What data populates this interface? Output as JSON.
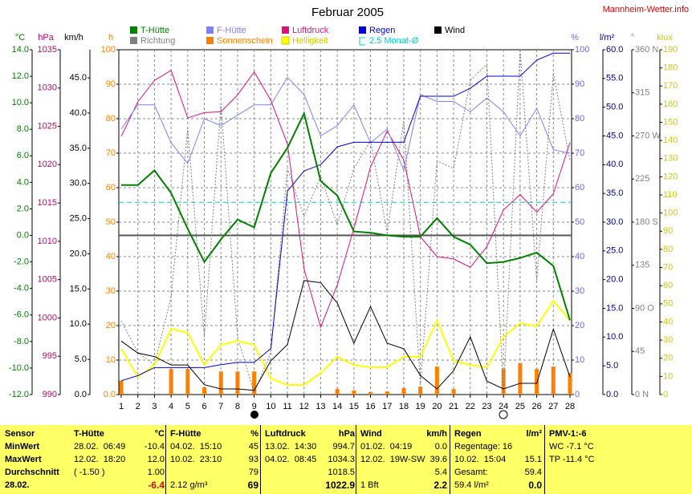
{
  "title": "Februar 2005",
  "site": "Mannheim-Wetter.info",
  "chart_data": {
    "type": "line",
    "x": [
      1,
      2,
      3,
      4,
      5,
      6,
      7,
      8,
      9,
      10,
      11,
      12,
      13,
      14,
      15,
      16,
      17,
      18,
      19,
      20,
      21,
      22,
      23,
      24,
      25,
      26,
      27,
      28
    ],
    "axes": [
      {
        "label": "°C",
        "color": "#008000",
        "lim": [
          -12,
          14
        ],
        "ticks": [
          {
            "value": -12,
            "label": "-12.0"
          },
          {
            "value": -10,
            "label": "-10.0"
          },
          {
            "value": -8,
            "label": "-8.0"
          },
          {
            "value": -6,
            "label": "-6.0"
          },
          {
            "value": -4,
            "label": "-4.0"
          },
          {
            "value": -2,
            "label": "-2.0"
          },
          {
            "value": 0,
            "label": "0.0"
          },
          {
            "value": 2,
            "label": "2.0"
          },
          {
            "value": 4,
            "label": "4.0"
          },
          {
            "value": 6,
            "label": "6.0"
          },
          {
            "value": 8,
            "label": "8.0"
          },
          {
            "value": 10,
            "label": "10.0"
          },
          {
            "value": 12,
            "label": "12.0"
          },
          {
            "value": 14,
            "label": "14.0"
          }
        ]
      },
      {
        "label": "hPa",
        "color": "#cc0066",
        "lim": [
          990,
          1035
        ],
        "ticks": [
          990,
          995,
          1000,
          1005,
          1010,
          1015,
          1020,
          1025,
          1030,
          1035
        ]
      },
      {
        "label": "km/h",
        "color": "#000000",
        "lim": [
          0,
          49
        ],
        "ticks": [
          {
            "value": 0,
            "label": "0.0"
          },
          {
            "value": 5,
            "label": "5.0"
          },
          {
            "value": 10,
            "label": "10.0"
          },
          {
            "value": 15,
            "label": "15.0"
          },
          {
            "value": 20,
            "label": "20.0"
          },
          {
            "value": 25,
            "label": "25.0"
          },
          {
            "value": 30,
            "label": "30.0"
          },
          {
            "value": 35,
            "label": "35.0"
          },
          {
            "value": 40,
            "label": "40.0"
          },
          {
            "value": 45,
            "label": "45.0"
          }
        ]
      },
      {
        "label": "h",
        "color": "#ff8000",
        "lim": [
          0,
          100
        ],
        "ticks": [
          {
            "value": 0,
            "label": "0.0"
          },
          10,
          20,
          30,
          40,
          50,
          60,
          70,
          80,
          90,
          100
        ],
        "grid": true
      },
      {
        "label": "%",
        "color": "#6666ff",
        "lim": [
          0,
          100
        ],
        "ticks": [
          0,
          10,
          20,
          30,
          40,
          50,
          60,
          70,
          80,
          90,
          100
        ]
      },
      {
        "label": "l/m²",
        "color": "#000099",
        "lim": [
          0,
          60
        ],
        "ticks": [
          {
            "value": 0,
            "label": "0.0"
          },
          {
            "value": 5,
            "label": "5.0"
          },
          {
            "value": 10,
            "label": "10.0"
          },
          {
            "value": 15,
            "label": "15.0"
          },
          {
            "value": 20,
            "label": "20.0"
          },
          {
            "value": 25,
            "label": "25.0"
          },
          {
            "value": 30,
            "label": "30.0"
          },
          {
            "value": 35,
            "label": "35.0"
          },
          {
            "value": 40,
            "label": "40.0"
          },
          {
            "value": 45,
            "label": "45.0"
          },
          {
            "value": 50,
            "label": "50.0"
          },
          {
            "value": 55,
            "label": "55.0"
          },
          {
            "value": 60,
            "label": "60.0"
          }
        ]
      },
      {
        "label": "°",
        "color": "#808080",
        "lim": [
          0,
          360
        ],
        "ticks": [
          {
            "value": 0,
            "label": "0 N"
          },
          45,
          {
            "value": 90,
            "label": "90 O"
          },
          135,
          {
            "value": 180,
            "label": "180 S"
          },
          225,
          {
            "value": 270,
            "label": "270 W"
          },
          315,
          {
            "value": 360,
            "label": "360 N"
          }
        ]
      },
      {
        "label": "klux",
        "color": "#cccc00",
        "lim": [
          0,
          190
        ],
        "ticks": [
          0,
          10,
          20,
          30,
          40,
          50,
          60,
          70,
          80,
          90,
          100,
          110,
          120,
          130,
          140,
          150,
          160,
          170,
          180,
          190
        ]
      }
    ],
    "series": [
      {
        "name": "T-Hütte",
        "axis": 0,
        "color": "#008000",
        "width": 2,
        "values": [
          3.8,
          3.8,
          4.9,
          3.2,
          0.5,
          -2.0,
          -0.3,
          1.2,
          0.6,
          4.7,
          6.6,
          9.2,
          4.1,
          3.0,
          0.3,
          0.2,
          0.0,
          -0.1,
          -0.1,
          1.3,
          -0.1,
          -0.7,
          -2.1,
          -2.0,
          -1.7,
          -1.3,
          -2.3,
          -6.4
        ]
      },
      {
        "name": "F-Hütte",
        "axis": 4,
        "color": "#8080ff",
        "width": 1,
        "values": [
          77,
          84,
          84,
          73,
          67,
          80,
          78,
          81,
          84,
          84,
          92,
          87,
          75,
          78,
          84,
          73,
          77,
          65,
          87,
          85,
          85,
          82,
          86,
          82,
          75,
          83,
          71,
          70
        ]
      },
      {
        "name": "Luftdruck",
        "axis": 1,
        "color": "#e0107a",
        "width": 1,
        "values": [
          1023.7,
          1028.2,
          1031.0,
          1032.3,
          1026.1,
          1026.8,
          1026.9,
          1029.1,
          1032.1,
          1028.4,
          1022.7,
          1006.4,
          998.8,
          1004.3,
          1011.7,
          1019.7,
          1024.4,
          1020.6,
          1010.6,
          1008.0,
          1007.7,
          1006.6,
          1009.3,
          1014.1,
          1016.1,
          1013.8,
          1016.2,
          1022.9
        ]
      },
      {
        "name": "Regen",
        "axis": 5,
        "color": "#0000dd",
        "width": 1,
        "values": [
          2.4,
          3.3,
          4.7,
          4.7,
          4.7,
          4.7,
          5.2,
          5.6,
          5.6,
          8.0,
          35.4,
          38.9,
          40.0,
          43.1,
          43.9,
          43.9,
          43.9,
          43.9,
          51.9,
          51.9,
          51.9,
          53.3,
          55.4,
          55.4,
          55.4,
          58.2,
          59.4,
          59.4
        ]
      },
      {
        "name": "Wind",
        "axis": 2,
        "color": "#000000",
        "width": 1,
        "values": [
          7.6,
          5.9,
          5.4,
          4.2,
          4.2,
          1.4,
          0.8,
          0.8,
          0.6,
          4.8,
          7.1,
          16.2,
          15.9,
          13.0,
          7.3,
          12.5,
          7.3,
          6.5,
          2.7,
          0.8,
          3.4,
          8.2,
          1.9,
          0.8,
          1.6,
          1.6,
          9.3,
          2.5
        ]
      },
      {
        "name": "Richtung",
        "axis": 6,
        "color": "#808080",
        "width": 1,
        "dash": true,
        "values": [
          77,
          44,
          31,
          102,
          278,
          60,
          303,
          60,
          2,
          44,
          236,
          186,
          228,
          177,
          236,
          265,
          169,
          286,
          10,
          244,
          236,
          328,
          345,
          2,
          360,
          119,
          336,
          244
        ]
      },
      {
        "name": "Sonnenschein",
        "axis": 3,
        "color": "#ff8000",
        "kind": "bar",
        "values": [
          4.0,
          0,
          0,
          7.4,
          7.4,
          2.1,
          6.7,
          6.7,
          6.7,
          0,
          0,
          0,
          0,
          1.6,
          1.2,
          0.7,
          0.9,
          1.9,
          2.3,
          8.1,
          1.6,
          0,
          0,
          7.4,
          9.1,
          7.4,
          8.1,
          6.3
        ]
      },
      {
        "name": "Helligkeit",
        "axis": 7,
        "color": "#ffff00",
        "width": 2,
        "values": [
          25.2,
          9.7,
          16.3,
          36.2,
          34.0,
          16.3,
          27.4,
          29.6,
          27.4,
          8.8,
          5.3,
          5.3,
          11.9,
          20.8,
          16.3,
          15.0,
          15.0,
          20.8,
          20.8,
          40.7,
          18.6,
          16.3,
          15.0,
          31.8,
          39.3,
          37.6,
          51.7,
          40.7
        ]
      },
      {
        "name": "2.5 Monat-Ø",
        "axis": 0,
        "color": "#00cccc",
        "width": 1,
        "dash": true,
        "kind": "hline",
        "value": 2.5
      }
    ]
  },
  "table": {
    "row_labels": [
      "Sensor",
      "MinWert",
      "MaxWert",
      "Durchschnitt",
      "28.02."
    ],
    "blocks": [
      {
        "rows": [
          {
            "left": "T-Hütte",
            "right": "°C"
          },
          {
            "left": "28.02.  06:49",
            "right": "-10.4"
          },
          {
            "left": "12.02.  18:20",
            "right": "12.0"
          },
          {
            "left": "( -1.50 )",
            "right": "1.00"
          },
          {
            "right": "-6.4"
          }
        ]
      },
      {
        "rows": [
          {
            "left": "F-Hütte",
            "right": "%"
          },
          {
            "left": "04.02.  15:10",
            "right": "45"
          },
          {
            "left": "10.02.  23:10",
            "right": "93"
          },
          {
            "right": "79"
          },
          {
            "left": "2.12 g/m³",
            "right": "69"
          }
        ]
      },
      {
        "rows": [
          {
            "left": "Luftdruck",
            "right": "hPa"
          },
          {
            "left": "13.02.  14:30",
            "right": "994.7"
          },
          {
            "left": "04.02.  08:45",
            "right": "1034.3"
          },
          {
            "right": "1018.5"
          },
          {
            "right": "1022.9"
          }
        ]
      },
      {
        "rows": [
          {
            "left": "Wind",
            "right": "km/h"
          },
          {
            "left": "01.02.  04:19",
            "right": "0.0"
          },
          {
            "left": "12.02.  19W-SW",
            "right": "39.6"
          },
          {
            "right": "5.4"
          },
          {
            "left": "1 Bft",
            "right": "2.2"
          }
        ]
      },
      {
        "rows": [
          {
            "left": "Regen",
            "right": "l/m²"
          },
          {
            "left": "Regentage: 16"
          },
          {
            "left": "10.02.  15:04",
            "right": "15.1"
          },
          {
            "left": "Gesamt:",
            "right": "59.4"
          },
          {
            "left": "59.4 l/m²",
            "right": "0.0"
          }
        ]
      },
      {
        "rows": [
          {
            "left": "PMV-1:-6"
          },
          {
            "left": "WC -7.1 °C"
          },
          {
            "left": "TP -11.4 °C"
          }
        ]
      }
    ]
  }
}
